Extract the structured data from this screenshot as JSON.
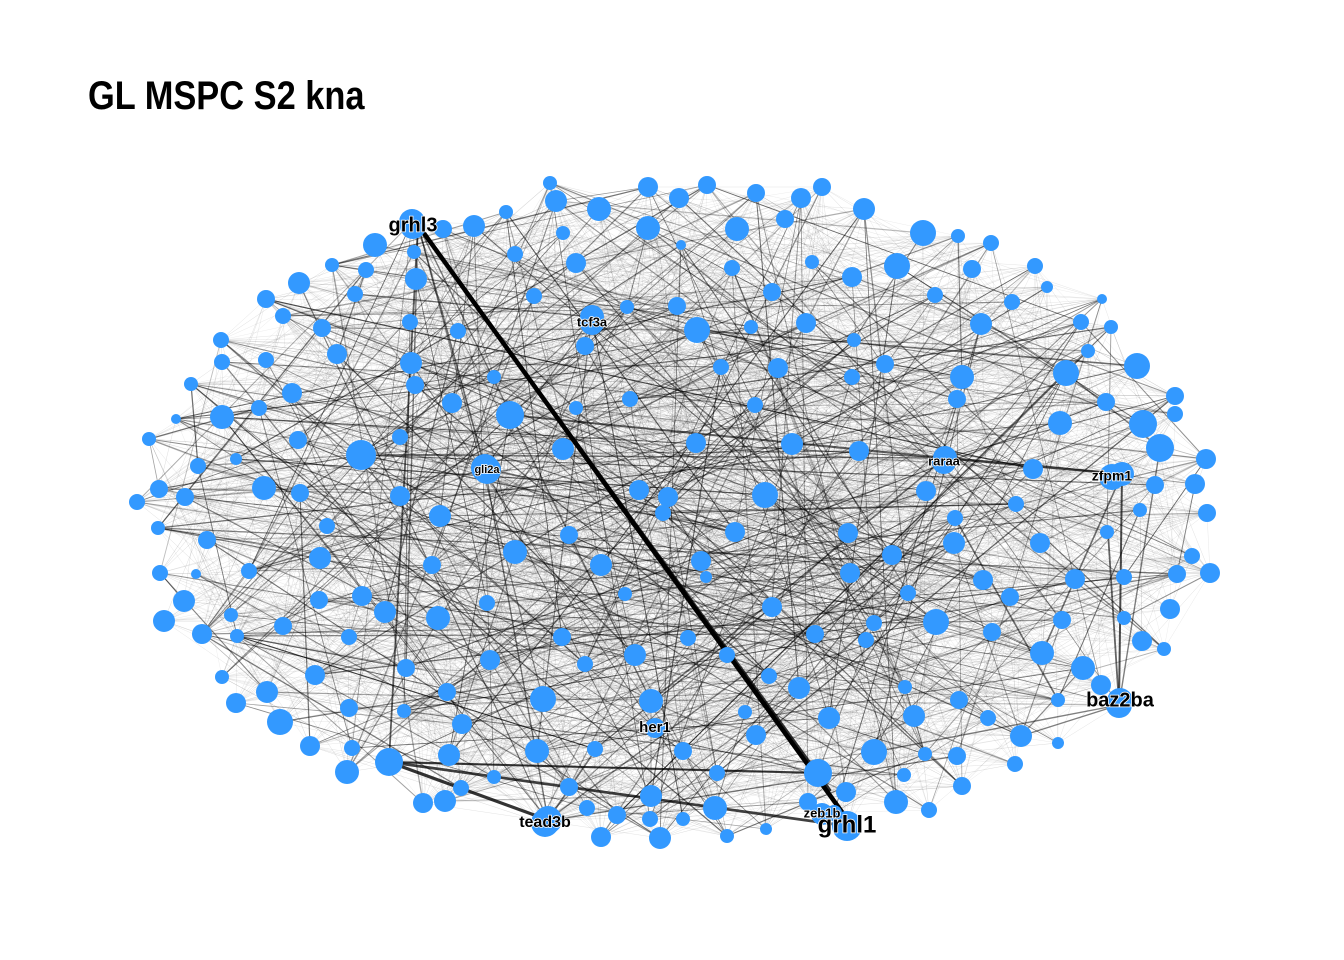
{
  "title": "GL MSPC S2 kna",
  "colors": {
    "node": "#3399ff",
    "edge": "#000000",
    "background": "#ffffff"
  },
  "labels": {
    "grhl3": "grhl3",
    "grhl1": "grhl1",
    "tcf3a": "tcf3a",
    "gli2a": "gli2a",
    "raraa": "raraa",
    "zfpm1": "zfpm1",
    "baz2ba": "baz2ba",
    "her1": "her1",
    "tead3b": "tead3b",
    "zeb1b": "zeb1b"
  }
}
